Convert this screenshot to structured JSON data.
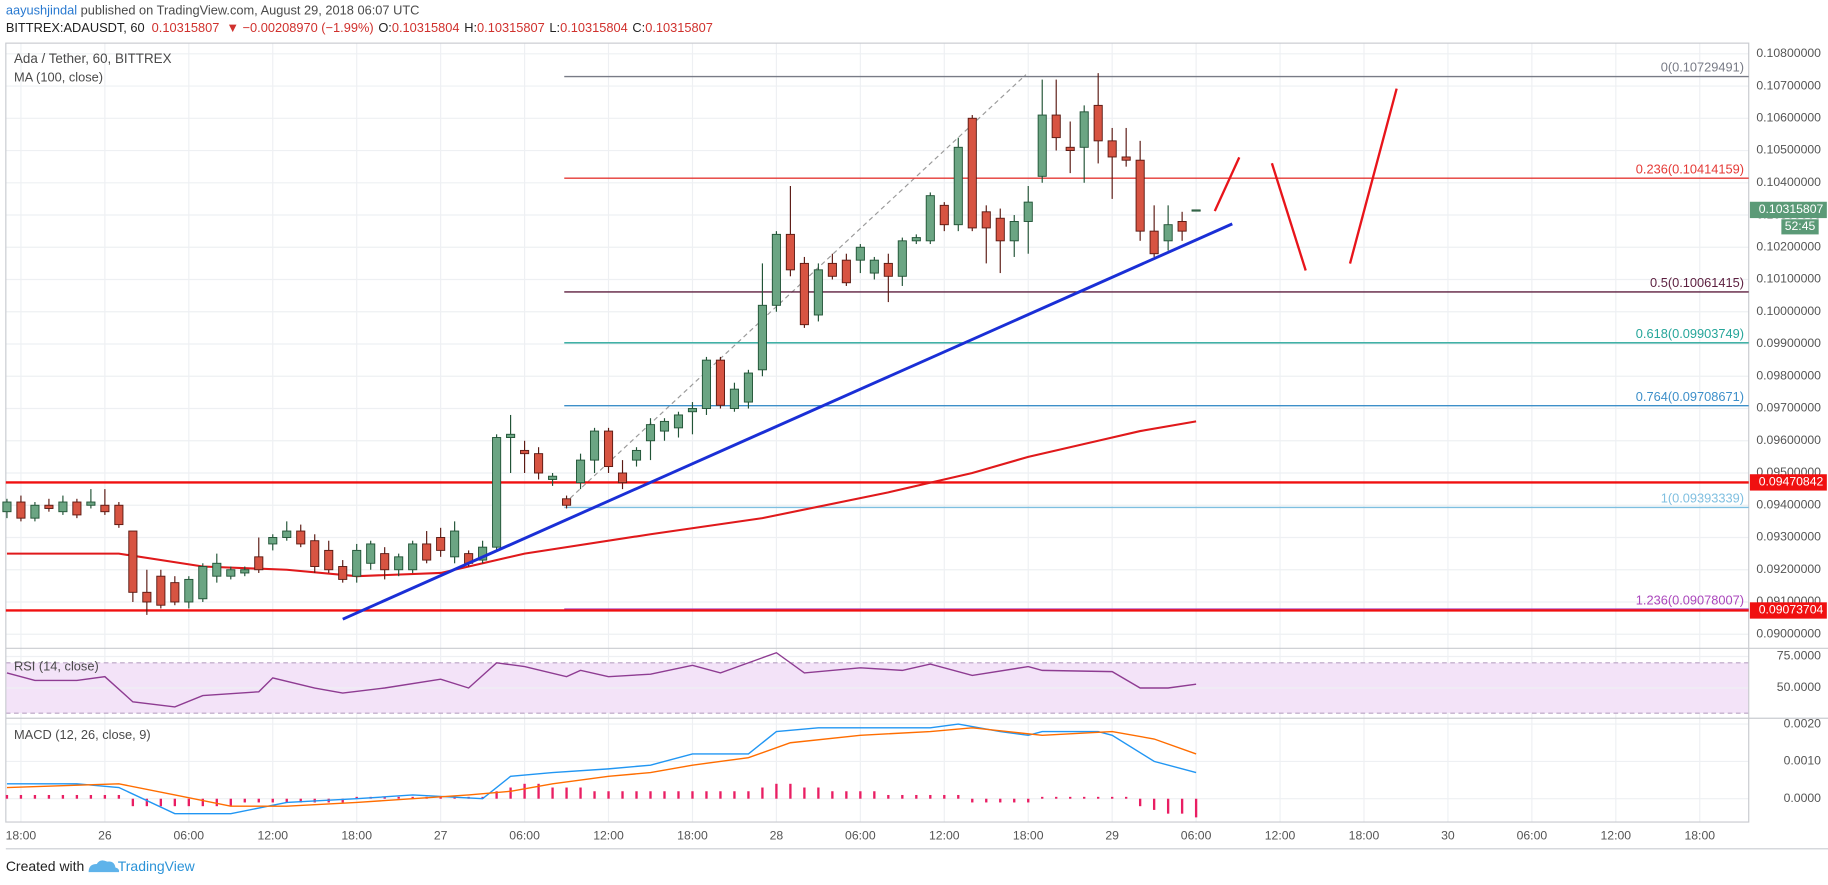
{
  "header": {
    "author": "aayushjindal",
    "published": "published on TradingView.com, August 29, 2018 06:07 UTC",
    "symbol": "BITTREX:ADAUSDT, 60",
    "quote": [
      "0.10315807",
      "▼ −0.00208970 (−1.99%)"
    ],
    "ohlc": [
      {
        "key": "O:",
        "value": "0.10315804"
      },
      {
        "key": "H:",
        "value": "0.10315807"
      },
      {
        "key": "L:",
        "value": "0.10315804"
      },
      {
        "key": "C:",
        "value": "0.10315807"
      }
    ]
  },
  "footer": {
    "text": "Created with",
    "brand": "TradingView"
  },
  "chart_data": {
    "type": "candlestick",
    "title": "Ada / Tether, 60, BITTREX",
    "grid": true,
    "xlim": [
      -0.08,
      124.5
    ],
    "xticks": [
      {
        "value": 1,
        "label": "18:00"
      },
      {
        "value": 7,
        "label": "26"
      },
      {
        "value": 13,
        "label": "06:00"
      },
      {
        "value": 19,
        "label": "12:00"
      },
      {
        "value": 25,
        "label": "18:00"
      },
      {
        "value": 31,
        "label": "27"
      },
      {
        "value": 37,
        "label": "06:00"
      },
      {
        "value": 43,
        "label": "12:00"
      },
      {
        "value": 49,
        "label": "18:00"
      },
      {
        "value": 55,
        "label": "28"
      },
      {
        "value": 61,
        "label": "06:00"
      },
      {
        "value": 67,
        "label": "12:00"
      },
      {
        "value": 73,
        "label": "18:00"
      },
      {
        "value": 79,
        "label": "29"
      },
      {
        "value": 85,
        "label": "06:00"
      },
      {
        "value": 91,
        "label": "12:00"
      },
      {
        "value": 97,
        "label": "18:00"
      },
      {
        "value": 103,
        "label": "30"
      },
      {
        "value": 109,
        "label": "06:00"
      },
      {
        "value": 115,
        "label": "12:00"
      },
      {
        "value": 121,
        "label": "18:00"
      }
    ],
    "ylim": [
      0.0896,
      0.10833
    ],
    "yticks": [
      {
        "value": 0.108,
        "label": "0.10800000"
      },
      {
        "value": 0.107,
        "label": "0.10700000"
      },
      {
        "value": 0.106,
        "label": "0.10600000"
      },
      {
        "value": 0.105,
        "label": "0.10500000"
      },
      {
        "value": 0.104,
        "label": "0.10400000"
      },
      {
        "value": 0.103,
        "label": "0.10300000"
      },
      {
        "value": 0.102,
        "label": "0.10200000"
      },
      {
        "value": 0.101,
        "label": "0.10100000"
      },
      {
        "value": 0.1,
        "label": "0.10000000"
      },
      {
        "value": 0.099,
        "label": "0.09900000"
      },
      {
        "value": 0.098,
        "label": "0.09800000"
      },
      {
        "value": 0.097,
        "label": "0.09700000"
      },
      {
        "value": 0.096,
        "label": "0.09600000"
      },
      {
        "value": 0.095,
        "label": "0.09500000"
      },
      {
        "value": 0.094,
        "label": "0.09400000"
      },
      {
        "value": 0.093,
        "label": "0.09300000"
      },
      {
        "value": 0.092,
        "label": "0.09200000"
      },
      {
        "value": 0.091,
        "label": "0.09100000"
      },
      {
        "value": 0.09,
        "label": "0.09000000"
      }
    ],
    "candles": {
      "up_color": "#6ba583",
      "down_color": "#d75442",
      "up_border": "#225437",
      "down_border": "#5b1a13",
      "open": [
        0.0938,
        0.0941,
        0.0936,
        0.094,
        0.0938,
        0.0941,
        0.094,
        0.094,
        0.094,
        0.0932,
        0.0913,
        0.0918,
        0.0916,
        0.091,
        0.0911,
        0.0918,
        0.0918,
        0.0919,
        0.0924,
        0.0928,
        0.093,
        0.0932,
        0.0929,
        0.0926,
        0.0921,
        0.0918,
        0.0922,
        0.0925,
        0.092,
        0.092,
        0.0928,
        0.093,
        0.0924,
        0.0925,
        0.0923,
        0.0927,
        0.0961,
        0.0957,
        0.0956,
        0.0948,
        0.0942,
        0.0947,
        0.0954,
        0.0963,
        0.095,
        0.0954,
        0.096,
        0.0963,
        0.0964,
        0.0969,
        0.097,
        0.0985,
        0.097,
        0.0972,
        0.0982,
        0.1002,
        0.1024,
        0.1015,
        0.0999,
        0.1015,
        0.1016,
        0.1016,
        0.1012,
        0.1015,
        0.1011,
        0.1022,
        0.1022,
        0.1033,
        0.1027,
        0.106,
        0.1031,
        0.1029,
        0.1022,
        0.1028,
        0.1042,
        0.1061,
        0.1051,
        0.1051,
        0.1064,
        0.1053,
        0.1048,
        0.1047,
        0.1025,
        0.1022,
        0.1028,
        0.10315804
      ],
      "high": [
        0.0942,
        0.0943,
        0.0941,
        0.0942,
        0.0943,
        0.0942,
        0.0945,
        0.0945,
        0.0941,
        0.0932,
        0.092,
        0.092,
        0.0918,
        0.0918,
        0.0922,
        0.0925,
        0.0921,
        0.0921,
        0.093,
        0.0931,
        0.0935,
        0.0934,
        0.0931,
        0.0929,
        0.0923,
        0.0928,
        0.0929,
        0.0927,
        0.0925,
        0.0929,
        0.0932,
        0.0933,
        0.0935,
        0.0926,
        0.0929,
        0.0962,
        0.0968,
        0.096,
        0.0958,
        0.095,
        0.0943,
        0.0956,
        0.0964,
        0.0964,
        0.0954,
        0.0958,
        0.0967,
        0.0967,
        0.0969,
        0.0972,
        0.0986,
        0.0986,
        0.0978,
        0.0982,
        0.1015,
        0.1025,
        0.1039,
        0.1017,
        0.1015,
        0.1018,
        0.1018,
        0.1021,
        0.1017,
        0.1018,
        0.1023,
        0.1024,
        0.1037,
        0.1034,
        0.1054,
        0.1061,
        0.1033,
        0.1032,
        0.103,
        0.1039,
        0.1072,
        0.1072,
        0.1059,
        0.1064,
        0.1074,
        0.1057,
        0.1057,
        0.1053,
        0.1033,
        0.1033,
        0.1031,
        0.10315807
      ],
      "low": [
        0.0936,
        0.0935,
        0.0935,
        0.0938,
        0.0937,
        0.0936,
        0.0939,
        0.0937,
        0.0933,
        0.091,
        0.0906,
        0.0908,
        0.0909,
        0.0908,
        0.091,
        0.0916,
        0.0917,
        0.0918,
        0.0919,
        0.0926,
        0.0929,
        0.0927,
        0.0919,
        0.0919,
        0.0916,
        0.0916,
        0.092,
        0.0917,
        0.0918,
        0.0919,
        0.0922,
        0.0924,
        0.0922,
        0.0921,
        0.0922,
        0.0926,
        0.095,
        0.095,
        0.0948,
        0.0946,
        0.0939,
        0.0945,
        0.095,
        0.095,
        0.0945,
        0.0952,
        0.0954,
        0.096,
        0.0961,
        0.0962,
        0.0968,
        0.097,
        0.0969,
        0.097,
        0.098,
        0.1,
        0.1011,
        0.0995,
        0.0997,
        0.101,
        0.1008,
        0.1012,
        0.101,
        0.1003,
        0.1008,
        0.1021,
        0.1021,
        0.1025,
        0.1025,
        0.1025,
        0.1015,
        0.1012,
        0.1017,
        0.1018,
        0.104,
        0.105,
        0.1043,
        0.104,
        0.1046,
        0.1035,
        0.1045,
        0.1022,
        0.1017,
        0.1019,
        0.1022,
        0.10315804
      ],
      "close": [
        0.0941,
        0.0936,
        0.094,
        0.0939,
        0.0941,
        0.0937,
        0.0941,
        0.0938,
        0.0934,
        0.0913,
        0.091,
        0.0909,
        0.091,
        0.0917,
        0.0921,
        0.0922,
        0.092,
        0.092,
        0.092,
        0.093,
        0.0932,
        0.0928,
        0.0921,
        0.092,
        0.0917,
        0.0926,
        0.0928,
        0.092,
        0.0924,
        0.0928,
        0.0923,
        0.0926,
        0.0932,
        0.0922,
        0.0927,
        0.0961,
        0.0962,
        0.0956,
        0.095,
        0.0949,
        0.094,
        0.0954,
        0.0963,
        0.0952,
        0.0947,
        0.0957,
        0.0965,
        0.0966,
        0.0968,
        0.097,
        0.0985,
        0.0971,
        0.0976,
        0.0981,
        0.1002,
        0.1024,
        0.1013,
        0.0996,
        0.1013,
        0.1011,
        0.1009,
        0.102,
        0.1016,
        0.1011,
        0.1022,
        0.1023,
        0.1036,
        0.1027,
        0.1051,
        0.1026,
        0.1026,
        0.1022,
        0.1028,
        0.1034,
        0.1061,
        0.1054,
        0.105,
        0.1062,
        0.1053,
        0.1048,
        0.1047,
        0.1025,
        0.1018,
        0.1027,
        0.1025,
        0.10315807
      ]
    },
    "ma": {
      "name": "MA (100, close)",
      "color": "#e0191b",
      "x": [
        0,
        8,
        14,
        20,
        25,
        31,
        37,
        46,
        54,
        63,
        69,
        73,
        78,
        81,
        85
      ],
      "values": [
        0.0925,
        0.0925,
        0.0921,
        0.092,
        0.0918,
        0.0919,
        0.0925,
        0.0931,
        0.0936,
        0.0944,
        0.095,
        0.0955,
        0.096,
        0.0963,
        0.0966
      ]
    },
    "fib_levels": [
      {
        "value": 0.10729491,
        "label": "0(0.10729491)",
        "color": "#787b86"
      },
      {
        "value": 0.10414159,
        "label": "0.236(0.10414159)",
        "color": "#e53935"
      },
      {
        "value": 0.10061415,
        "label": "0.5(0.10061415)",
        "color": "#5d1f3f"
      },
      {
        "value": 0.09903749,
        "label": "0.618(0.09903749)",
        "color": "#26a69a"
      },
      {
        "value": 0.09708671,
        "label": "0.764(0.09708671)",
        "color": "#3d8fc9"
      },
      {
        "value": 0.09393339,
        "label": "1(0.09393339)",
        "color": "#7fbfe0"
      },
      {
        "value": 0.09078007,
        "label": "1.236(0.09078007)",
        "color": "#ab47bc"
      }
    ],
    "hlines": [
      {
        "value": 0.09470842,
        "color": "#f01010"
      },
      {
        "value": 0.09073704,
        "color": "#f01010"
      }
    ],
    "countdown": "52:45",
    "last_color": "#5b9a77",
    "rsi": {
      "name": "RSI (14, close)",
      "color": "#8e3c92",
      "band": [
        30,
        70
      ],
      "band_color": "#f3e3f8",
      "ylim": [
        26.9,
        80.6
      ],
      "yticks": [
        {
          "value": 75,
          "label": "75.0000"
        },
        {
          "value": 50,
          "label": "50.0000"
        }
      ],
      "x": [
        0,
        2,
        5,
        7,
        9,
        12,
        14,
        18,
        19,
        22,
        24,
        27,
        31,
        33,
        35,
        37,
        40,
        41,
        43,
        46,
        49,
        51,
        55,
        57,
        61,
        64,
        66,
        69,
        73,
        74,
        79,
        81,
        83,
        85
      ],
      "values": [
        62,
        56,
        56,
        59,
        39,
        35,
        44,
        47,
        58,
        50,
        46,
        50,
        57,
        50,
        70,
        67,
        59,
        64,
        59,
        61,
        68,
        62,
        78,
        62,
        66,
        64,
        69,
        60,
        67,
        64,
        63,
        50,
        50,
        53
      ]
    },
    "macd": {
      "name": "MACD (12, 26, close, 9)",
      "macd_color": "#2196f3",
      "signal_color": "#ff6d00",
      "hist_color": "#e91e63",
      "ylim": [
        -0.000625,
        0.002125
      ],
      "yticks": [
        {
          "value": 0.002,
          "label": "0.0020"
        },
        {
          "value": 0.001,
          "label": "0.0010"
        },
        {
          "value": 0,
          "label": "0.0000"
        }
      ],
      "x": [
        0,
        5,
        8,
        12,
        16,
        20,
        25,
        29,
        34,
        36,
        39,
        43,
        46,
        49,
        53,
        55,
        58,
        61,
        66,
        68,
        71,
        73,
        74,
        78,
        79,
        82,
        85
      ],
      "macd": [
        0.0004,
        0.0004,
        0.0003,
        -0.0004,
        -0.0004,
        -0.0001,
        0,
        0.0001,
        0,
        0.0006,
        0.0007,
        0.0008,
        0.0009,
        0.0012,
        0.0012,
        0.0018,
        0.0019,
        0.0019,
        0.0019,
        0.002,
        0.0018,
        0.0017,
        0.0018,
        0.0018,
        0.0017,
        0.001,
        0.0007
      ],
      "signal_x": [
        0,
        8,
        12,
        16,
        20,
        25,
        29,
        33,
        36,
        39,
        43,
        46,
        49,
        53,
        56,
        61,
        66,
        69,
        74,
        79,
        82,
        85
      ],
      "signal": [
        0.0003,
        0.0004,
        0.0001,
        -0.0002,
        -0.0002,
        -0.0001,
        0,
        0.0001,
        0.0002,
        0.0004,
        0.0006,
        0.0007,
        0.0009,
        0.0011,
        0.0015,
        0.0017,
        0.0018,
        0.0019,
        0.0017,
        0.0018,
        0.0016,
        0.0012
      ],
      "histogram": [
        0.0001,
        0.0001,
        0.0001,
        0.0001,
        0.0001,
        0.0001,
        0.0001,
        0.0001,
        0.0001,
        -0.0002,
        -0.0002,
        -0.0002,
        -0.0002,
        -0.0002,
        -0.0002,
        -0.0002,
        -0.0002,
        -0.0001,
        -0.0001,
        -0.0001,
        -0.0001,
        -0.0001,
        -0.0001,
        -0.0001,
        -0.0001,
        5e-05,
        5e-05,
        5e-05,
        5e-05,
        5e-05,
        5e-05,
        5e-05,
        5e-05,
        5e-05,
        5e-05,
        0.0002,
        0.0003,
        0.0004,
        0.0004,
        0.0003,
        0.0003,
        0.0003,
        0.0002,
        0.0002,
        0.0002,
        0.0002,
        0.0002,
        0.0002,
        0.0002,
        0.0002,
        0.0002,
        0.0002,
        0.0002,
        0.0002,
        0.0003,
        0.0004,
        0.0004,
        0.0003,
        0.0003,
        0.0002,
        0.0002,
        0.0002,
        0.0002,
        0.0001,
        0.0001,
        0.0001,
        0.0001,
        0.0001,
        0.0001,
        -0.0001,
        -0.0001,
        -0.0001,
        -0.0001,
        -0.0001,
        5e-05,
        5e-05,
        5e-05,
        5e-05,
        5e-05,
        5e-05,
        5e-05,
        -0.0002,
        -0.0003,
        -0.0004,
        -0.0004,
        -0.0005
      ]
    }
  }
}
